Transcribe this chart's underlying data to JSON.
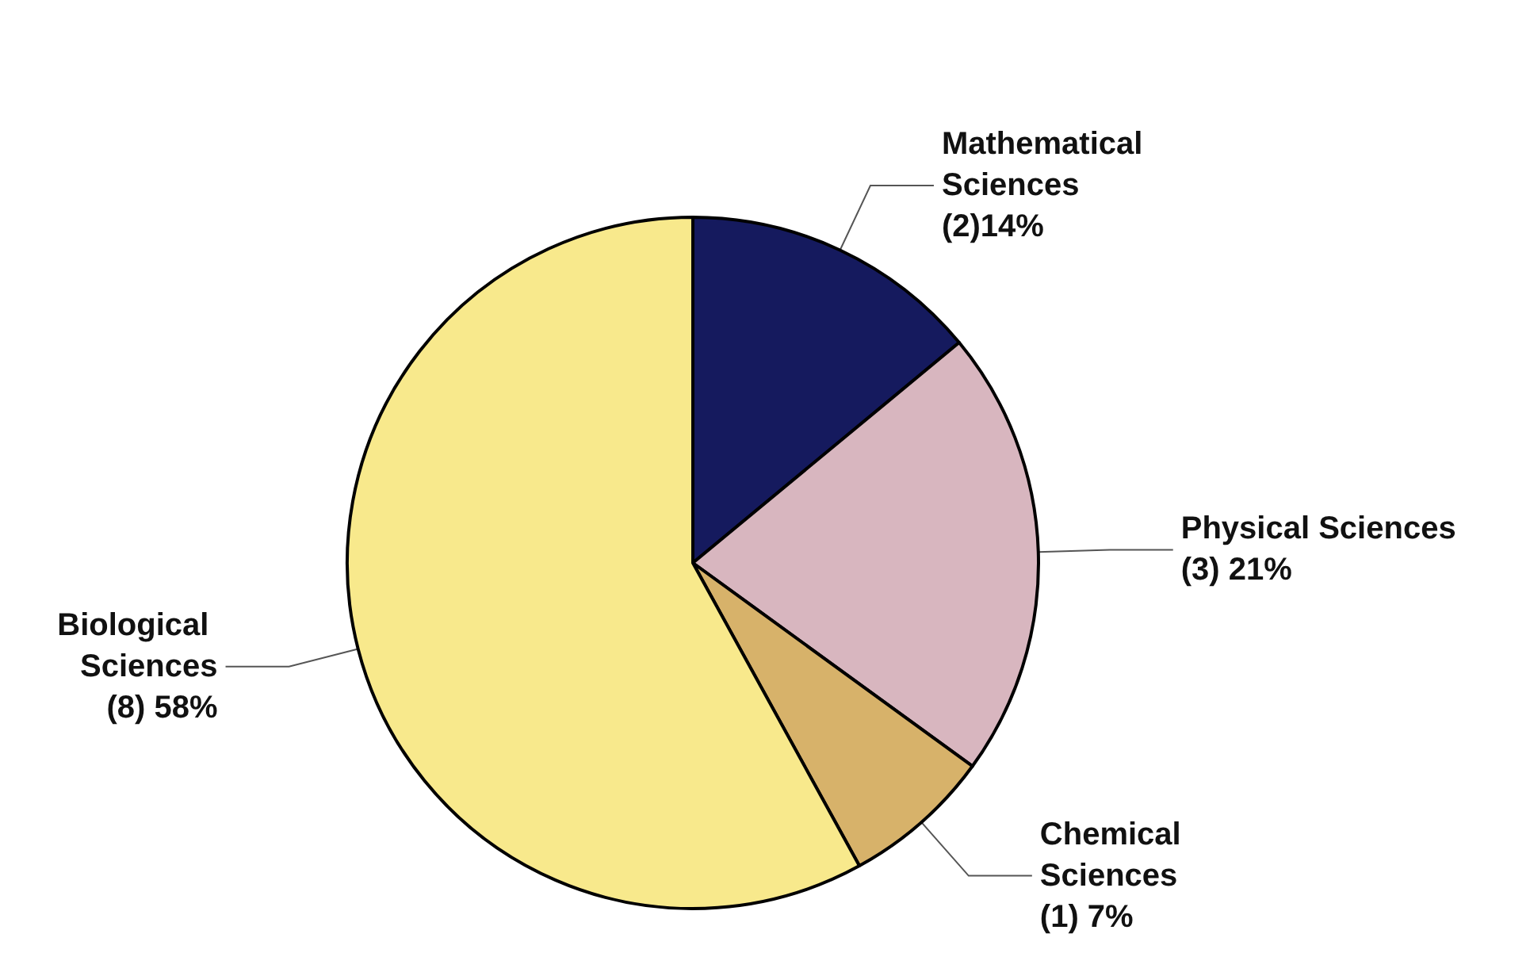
{
  "chart_data": {
    "type": "pie",
    "categories": [
      "Mathematical Sciences",
      "Physical Sciences",
      "Chemical Sciences",
      "Biological Sciences"
    ],
    "values": [
      14,
      21,
      7,
      58
    ],
    "value_labels": [
      "(2)14%",
      "(3) 21%",
      "(1) 7%",
      "(8) 58%"
    ],
    "colors": [
      "#151a5e",
      "#d8b6bf",
      "#d7b26a",
      "#f8e98c"
    ]
  }
}
